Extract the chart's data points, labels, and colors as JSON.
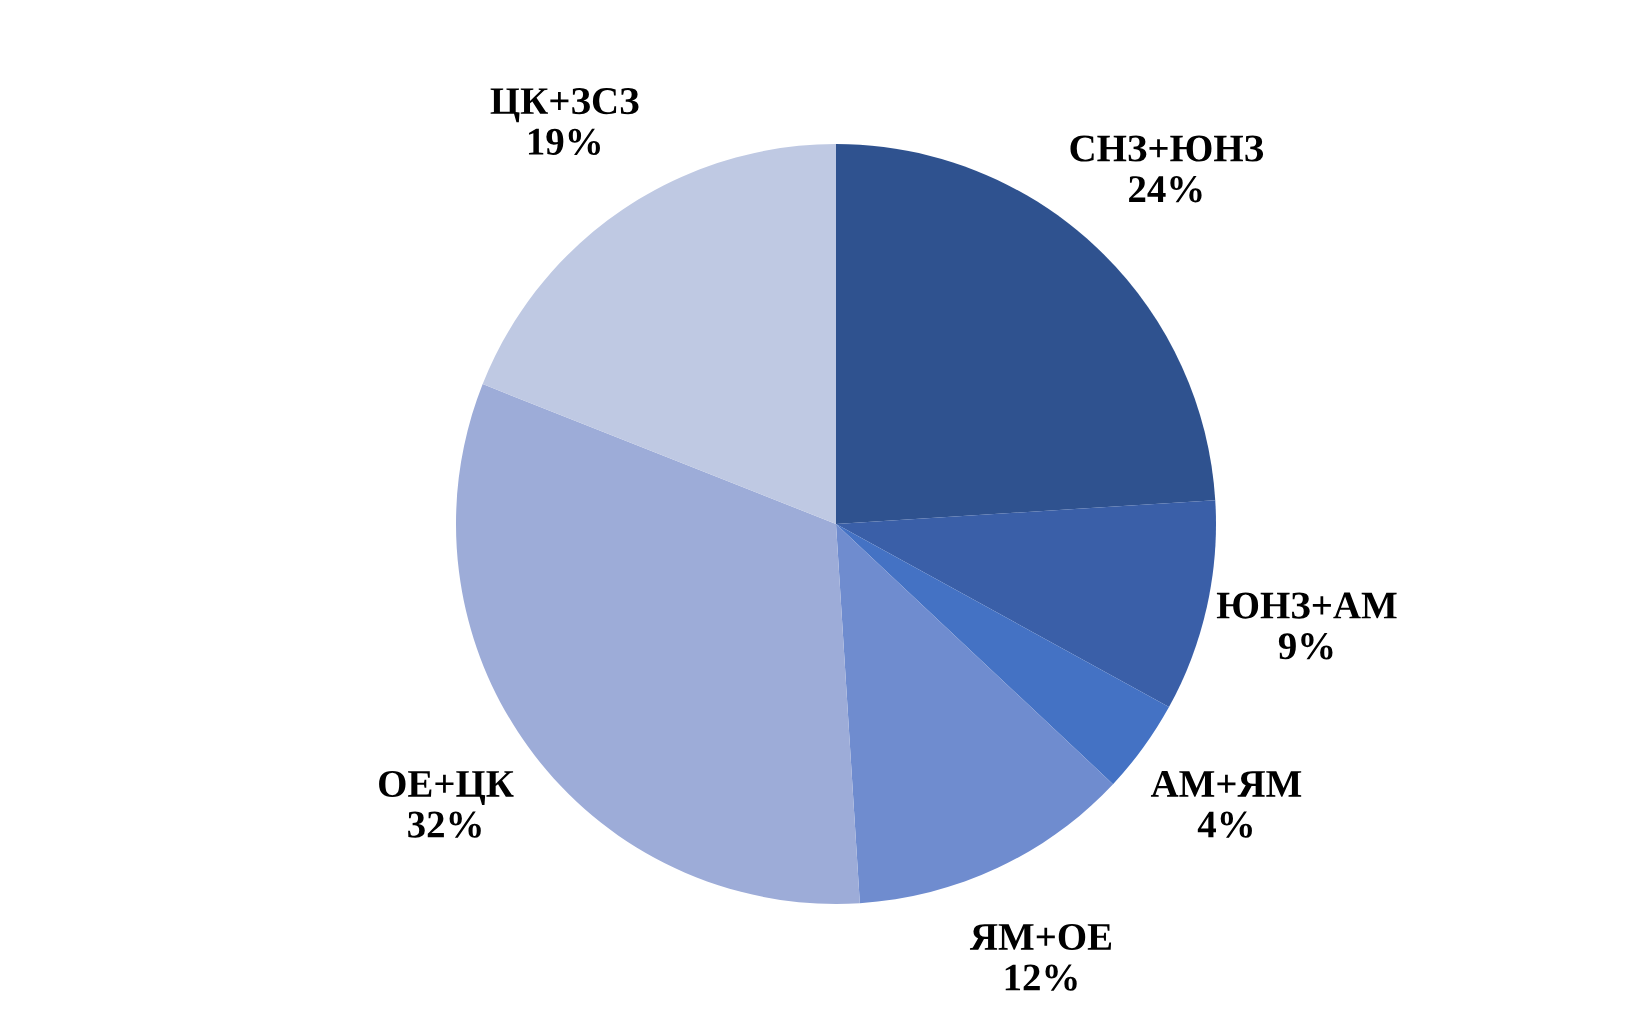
{
  "chart_data": {
    "type": "pie",
    "categories": [
      "СНЗ+ЮНЗ",
      "ЮНЗ+АМ",
      "АМ+ЯМ",
      "ЯМ+ОЕ",
      "ОЕ+ЦК",
      "ЦК+ЗСЗ"
    ],
    "values": [
      24,
      9,
      4,
      12,
      32,
      19
    ],
    "value_labels": [
      "24%",
      "9%",
      "4%",
      "12%",
      "32%",
      "19%"
    ],
    "colors": [
      "#2f528f",
      "#3a5fa8",
      "#4472c4",
      "#6f8ccf",
      "#9dacd8",
      "#bfc9e3"
    ],
    "legend": false
  }
}
